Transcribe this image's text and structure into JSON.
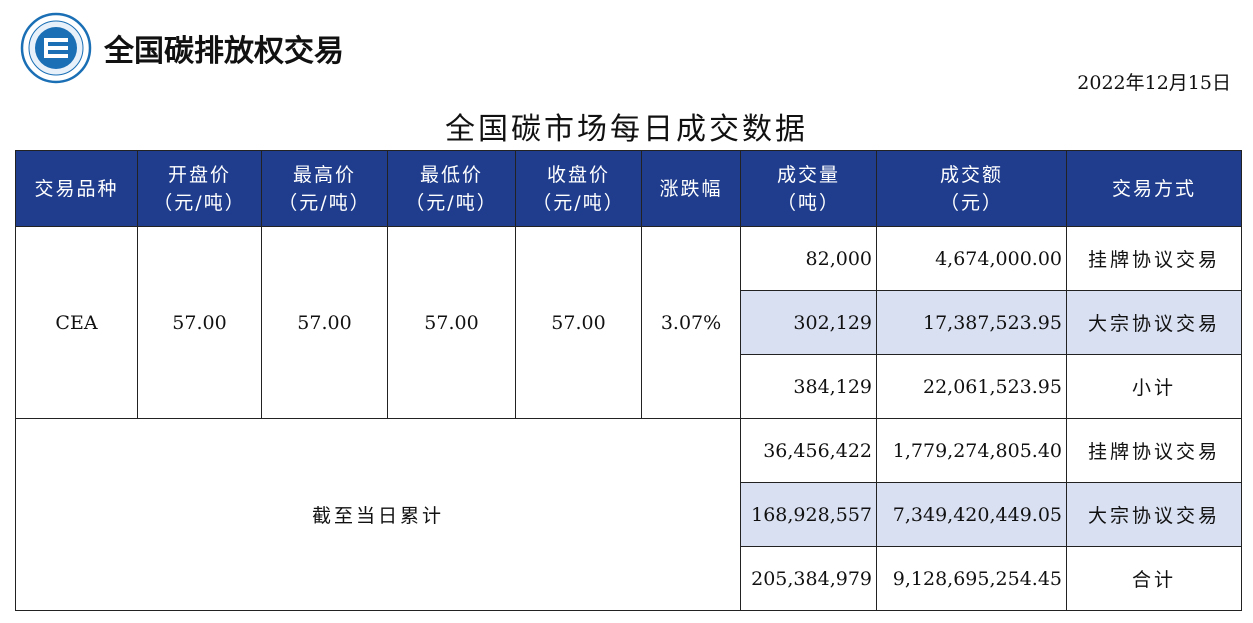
{
  "header": {
    "brand": "全国碳排放权交易",
    "logo_icon": "carbon-exchange-logo-icon",
    "date": "2022年12月15日",
    "title": "全国碳市场每日成交数据"
  },
  "table": {
    "columns": [
      {
        "line1": "交易品种",
        "line2": ""
      },
      {
        "line1": "开盘价",
        "line2": "（元/吨）"
      },
      {
        "line1": "最高价",
        "line2": "（元/吨）"
      },
      {
        "line1": "最低价",
        "line2": "（元/吨）"
      },
      {
        "line1": "收盘价",
        "line2": "（元/吨）"
      },
      {
        "line1": "涨跌幅",
        "line2": ""
      },
      {
        "line1": "成交量",
        "line2": "（吨）"
      },
      {
        "line1": "成交额",
        "line2": "（元）"
      },
      {
        "line1": "交易方式",
        "line2": ""
      }
    ],
    "daily": {
      "product": "CEA",
      "open": "57.00",
      "high": "57.00",
      "low": "57.00",
      "close": "57.00",
      "change": "3.07%",
      "rows": [
        {
          "volume": "82,000",
          "amount": "4,674,000.00",
          "method": "挂牌协议交易"
        },
        {
          "volume": "302,129",
          "amount": "17,387,523.95",
          "method": "大宗协议交易"
        },
        {
          "volume": "384,129",
          "amount": "22,061,523.95",
          "method": "小计"
        }
      ]
    },
    "cumulative": {
      "label": "截至当日累计",
      "rows": [
        {
          "volume": "36,456,422",
          "amount": "1,779,274,805.40",
          "method": "挂牌协议交易"
        },
        {
          "volume": "168,928,557",
          "amount": "7,349,420,449.05",
          "method": "大宗协议交易"
        },
        {
          "volume": "205,384,979",
          "amount": "9,128,695,254.45",
          "method": "合计"
        }
      ]
    }
  },
  "colors": {
    "header_bg": "#1f3d8c",
    "highlight_bg": "#d9e0f2",
    "logo_blue": "#1a6fb5"
  }
}
